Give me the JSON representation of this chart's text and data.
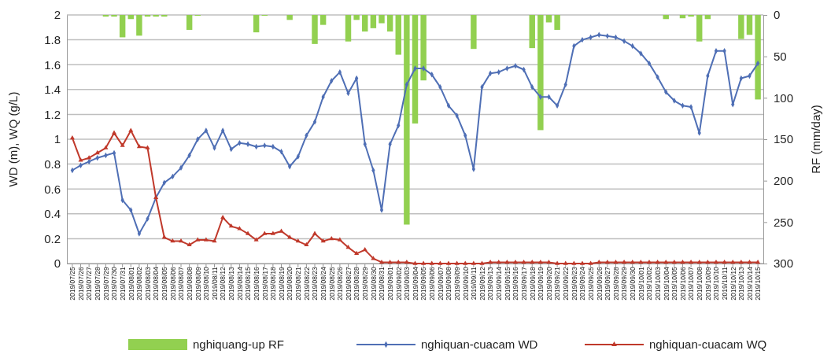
{
  "chart_data": {
    "type": "line",
    "ylabel": "WD (m), WQ (g/L)",
    "y2label": "RF (mm/day)",
    "categories": [
      "2019/07/25",
      "2019/07/26",
      "2019/07/27",
      "2019/07/28",
      "2019/07/29",
      "2019/07/30",
      "2019/07/31",
      "2019/08/01",
      "2019/08/02",
      "2019/08/03",
      "2019/08/04",
      "2019/08/05",
      "2019/08/06",
      "2019/08/07",
      "2019/08/08",
      "2019/08/09",
      "2019/08/10",
      "2019/08/11",
      "2019/08/12",
      "2019/08/13",
      "2019/08/14",
      "2019/08/15",
      "2019/08/16",
      "2019/08/17",
      "2019/08/18",
      "2019/08/19",
      "2019/08/20",
      "2019/08/21",
      "2019/08/22",
      "2019/08/23",
      "2019/08/24",
      "2019/08/25",
      "2019/08/26",
      "2019/08/27",
      "2019/08/28",
      "2019/08/29",
      "2019/08/30",
      "2019/08/31",
      "2019/09/01",
      "2019/09/02",
      "2019/09/03",
      "2019/09/04",
      "2019/09/05",
      "2019/09/06",
      "2019/09/07",
      "2019/09/08",
      "2019/09/09",
      "2019/09/10",
      "2019/09/11",
      "2019/09/12",
      "2019/09/13",
      "2019/09/14",
      "2019/09/15",
      "2019/09/16",
      "2019/09/17",
      "2019/09/18",
      "2019/09/19",
      "2019/09/20",
      "2019/09/21",
      "2019/09/22",
      "2019/09/23",
      "2019/09/24",
      "2019/09/25",
      "2019/09/26",
      "2019/09/27",
      "2019/09/28",
      "2019/09/29",
      "2019/09/30",
      "2019/10/01",
      "2019/10/02",
      "2019/10/03",
      "2019/10/04",
      "2019/10/05",
      "2019/10/06",
      "2019/10/07",
      "2019/10/08",
      "2019/10/09",
      "2019/10/10",
      "2019/10/11",
      "2019/10/12",
      "2019/10/13",
      "2019/10/14",
      "2019/10/15"
    ],
    "series": [
      {
        "name": "nghiquang-up RF",
        "type": "bar",
        "axis": "y2",
        "color": "#92d050",
        "values": [
          null,
          null,
          null,
          null,
          2,
          2,
          27,
          5,
          25,
          2,
          2,
          2,
          null,
          null,
          18,
          1,
          null,
          null,
          null,
          null,
          null,
          null,
          21,
          1,
          null,
          null,
          6,
          null,
          null,
          35,
          12,
          null,
          null,
          32,
          6,
          20,
          16,
          10,
          20,
          48,
          253,
          131,
          79,
          null,
          null,
          null,
          null,
          null,
          41,
          null,
          null,
          null,
          null,
          null,
          null,
          40,
          139,
          9,
          18,
          null,
          null,
          null,
          null,
          null,
          null,
          null,
          null,
          null,
          null,
          null,
          null,
          5,
          null,
          4,
          2,
          32,
          5,
          null,
          null,
          null,
          29,
          24,
          102
        ]
      },
      {
        "name": "nghiquan-cuacam WD",
        "marker": "diamond",
        "color": "#4f6fb5",
        "values": [
          0.75,
          0.79,
          0.82,
          0.85,
          0.87,
          0.89,
          0.51,
          0.43,
          0.24,
          0.36,
          0.53,
          0.65,
          0.7,
          0.77,
          0.87,
          1.0,
          1.07,
          0.93,
          1.07,
          0.92,
          0.97,
          0.96,
          0.94,
          0.95,
          0.94,
          0.9,
          0.78,
          0.86,
          1.03,
          1.14,
          1.34,
          1.47,
          1.54,
          1.37,
          1.49,
          0.96,
          0.75,
          0.43,
          0.96,
          1.11,
          1.44,
          1.57,
          1.57,
          1.52,
          1.42,
          1.27,
          1.19,
          1.03,
          0.76,
          1.42,
          1.53,
          1.54,
          1.57,
          1.59,
          1.56,
          1.42,
          1.34,
          1.34,
          1.27,
          1.44,
          1.75,
          1.8,
          1.82,
          1.84,
          1.83,
          1.82,
          1.79,
          1.75,
          1.69,
          1.61,
          1.5,
          1.38,
          1.31,
          1.27,
          1.26,
          1.05,
          1.51,
          1.71,
          1.71,
          1.28,
          1.49,
          1.51,
          1.61
        ]
      },
      {
        "name": "nghiquan-cuacam WQ",
        "marker": "triangle",
        "color": "#c0392b",
        "values": [
          1.01,
          0.83,
          0.85,
          0.89,
          0.93,
          1.05,
          0.95,
          1.07,
          0.94,
          0.93,
          0.53,
          0.21,
          0.18,
          0.18,
          0.15,
          0.19,
          0.19,
          0.18,
          0.37,
          0.3,
          0.28,
          0.24,
          0.19,
          0.24,
          0.24,
          0.26,
          0.21,
          0.18,
          0.15,
          0.24,
          0.18,
          0.2,
          0.19,
          0.13,
          0.08,
          0.11,
          0.04,
          0.01,
          0.01,
          0.01,
          0.01,
          0,
          0,
          0,
          0,
          0,
          0,
          0,
          0,
          0,
          0.01,
          0.01,
          0.01,
          0.01,
          0.01,
          0.01,
          0.01,
          0.01,
          0,
          0,
          0,
          0,
          0,
          0.01,
          0.01,
          0.01,
          0.01,
          0.01,
          0.01,
          0.01,
          0.01,
          0.01,
          0.01,
          0.01,
          0.01,
          0.01,
          0.01,
          0.01,
          0.01,
          0.01,
          0.01,
          0.01,
          0.01
        ]
      }
    ],
    "ylim": [
      0,
      2
    ],
    "yticks": [
      0,
      0.2,
      0.4,
      0.6,
      0.8,
      1,
      1.2,
      1.4,
      1.6,
      1.8,
      2
    ],
    "y2lim": [
      300,
      0
    ],
    "y2ticks": [
      0,
      50,
      100,
      150,
      200,
      250,
      300
    ],
    "grid": "y",
    "legend": "bottom"
  }
}
